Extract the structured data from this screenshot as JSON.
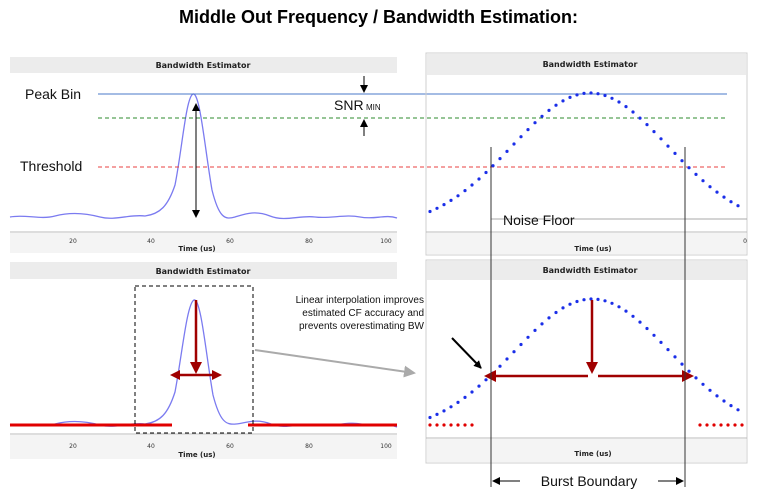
{
  "title": "Middle Out Frequency / Bandwidth Estimation:",
  "panels": {
    "title": "Bandwidth Estimator",
    "x_axis_label": "Time (us)",
    "left_ticks": [
      "20",
      "40",
      "60",
      "80",
      "100"
    ],
    "right_tick_partial": "0"
  },
  "labels": {
    "peak_bin": "Peak Bin",
    "threshold": "Threshold",
    "snr": "SNR",
    "snr_sub": "MIN",
    "noise_floor": "Noise Floor",
    "burst_boundary": "Burst Boundary"
  },
  "annotation": {
    "line1": "Linear interpolation improves",
    "line2": "estimated CF accuracy and",
    "line3": "prevents overestimating BW"
  },
  "colors": {
    "signal": "#7b7bf0",
    "peak_line": "#4a78c8",
    "snr_line": "#2e8b2e",
    "threshold_line": "#e84040",
    "dots": "#1a2ee8",
    "marker": "#a00000",
    "noise_red": "#e00000"
  }
}
